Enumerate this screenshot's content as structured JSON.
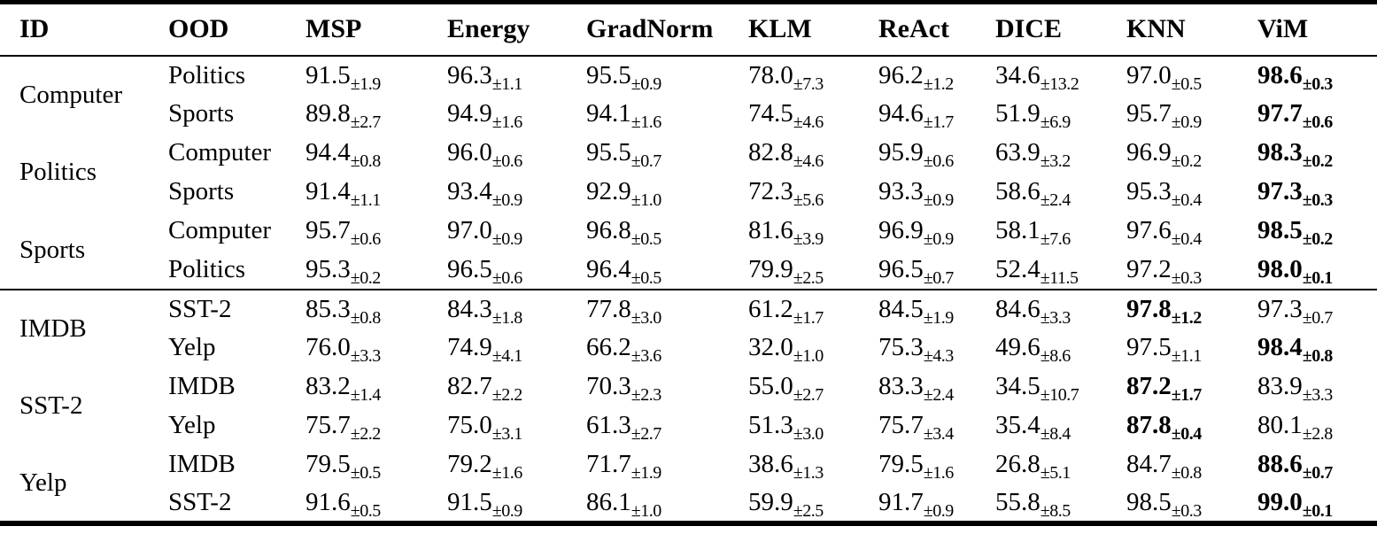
{
  "table": {
    "columns": [
      {
        "key": "id",
        "label": "ID"
      },
      {
        "key": "ood",
        "label": "OOD"
      },
      {
        "key": "msp",
        "label": "MSP"
      },
      {
        "key": "energy",
        "label": "Energy"
      },
      {
        "key": "gradnorm",
        "label": "GradNorm"
      },
      {
        "key": "klm",
        "label": "KLM"
      },
      {
        "key": "react",
        "label": "ReAct"
      },
      {
        "key": "dice",
        "label": "DICE"
      },
      {
        "key": "knn",
        "label": "KNN"
      },
      {
        "key": "vim",
        "label": "ViM"
      }
    ],
    "plus_minus_symbol": "±",
    "sections": [
      {
        "groups": [
          {
            "id": "Computer",
            "rows": [
              {
                "ood": "Politics",
                "cells": [
                  {
                    "mean": "91.5",
                    "std": "1.9",
                    "bold": false
                  },
                  {
                    "mean": "96.3",
                    "std": "1.1",
                    "bold": false
                  },
                  {
                    "mean": "95.5",
                    "std": "0.9",
                    "bold": false
                  },
                  {
                    "mean": "78.0",
                    "std": "7.3",
                    "bold": false
                  },
                  {
                    "mean": "96.2",
                    "std": "1.2",
                    "bold": false
                  },
                  {
                    "mean": "34.6",
                    "std": "13.2",
                    "bold": false
                  },
                  {
                    "mean": "97.0",
                    "std": "0.5",
                    "bold": false
                  },
                  {
                    "mean": "98.6",
                    "std": "0.3",
                    "bold": true
                  }
                ]
              },
              {
                "ood": "Sports",
                "cells": [
                  {
                    "mean": "89.8",
                    "std": "2.7",
                    "bold": false
                  },
                  {
                    "mean": "94.9",
                    "std": "1.6",
                    "bold": false
                  },
                  {
                    "mean": "94.1",
                    "std": "1.6",
                    "bold": false
                  },
                  {
                    "mean": "74.5",
                    "std": "4.6",
                    "bold": false
                  },
                  {
                    "mean": "94.6",
                    "std": "1.7",
                    "bold": false
                  },
                  {
                    "mean": "51.9",
                    "std": "6.9",
                    "bold": false
                  },
                  {
                    "mean": "95.7",
                    "std": "0.9",
                    "bold": false
                  },
                  {
                    "mean": "97.7",
                    "std": "0.6",
                    "bold": true
                  }
                ]
              }
            ]
          },
          {
            "id": "Politics",
            "rows": [
              {
                "ood": "Computer",
                "cells": [
                  {
                    "mean": "94.4",
                    "std": "0.8",
                    "bold": false
                  },
                  {
                    "mean": "96.0",
                    "std": "0.6",
                    "bold": false
                  },
                  {
                    "mean": "95.5",
                    "std": "0.7",
                    "bold": false
                  },
                  {
                    "mean": "82.8",
                    "std": "4.6",
                    "bold": false
                  },
                  {
                    "mean": "95.9",
                    "std": "0.6",
                    "bold": false
                  },
                  {
                    "mean": "63.9",
                    "std": "3.2",
                    "bold": false
                  },
                  {
                    "mean": "96.9",
                    "std": "0.2",
                    "bold": false
                  },
                  {
                    "mean": "98.3",
                    "std": "0.2",
                    "bold": true
                  }
                ]
              },
              {
                "ood": "Sports",
                "cells": [
                  {
                    "mean": "91.4",
                    "std": "1.1",
                    "bold": false
                  },
                  {
                    "mean": "93.4",
                    "std": "0.9",
                    "bold": false
                  },
                  {
                    "mean": "92.9",
                    "std": "1.0",
                    "bold": false
                  },
                  {
                    "mean": "72.3",
                    "std": "5.6",
                    "bold": false
                  },
                  {
                    "mean": "93.3",
                    "std": "0.9",
                    "bold": false
                  },
                  {
                    "mean": "58.6",
                    "std": "2.4",
                    "bold": false
                  },
                  {
                    "mean": "95.3",
                    "std": "0.4",
                    "bold": false
                  },
                  {
                    "mean": "97.3",
                    "std": "0.3",
                    "bold": true
                  }
                ]
              }
            ]
          },
          {
            "id": "Sports",
            "rows": [
              {
                "ood": "Computer",
                "cells": [
                  {
                    "mean": "95.7",
                    "std": "0.6",
                    "bold": false
                  },
                  {
                    "mean": "97.0",
                    "std": "0.9",
                    "bold": false
                  },
                  {
                    "mean": "96.8",
                    "std": "0.5",
                    "bold": false
                  },
                  {
                    "mean": "81.6",
                    "std": "3.9",
                    "bold": false
                  },
                  {
                    "mean": "96.9",
                    "std": "0.9",
                    "bold": false
                  },
                  {
                    "mean": "58.1",
                    "std": "7.6",
                    "bold": false
                  },
                  {
                    "mean": "97.6",
                    "std": "0.4",
                    "bold": false
                  },
                  {
                    "mean": "98.5",
                    "std": "0.2",
                    "bold": true
                  }
                ]
              },
              {
                "ood": "Politics",
                "cells": [
                  {
                    "mean": "95.3",
                    "std": "0.2",
                    "bold": false
                  },
                  {
                    "mean": "96.5",
                    "std": "0.6",
                    "bold": false
                  },
                  {
                    "mean": "96.4",
                    "std": "0.5",
                    "bold": false
                  },
                  {
                    "mean": "79.9",
                    "std": "2.5",
                    "bold": false
                  },
                  {
                    "mean": "96.5",
                    "std": "0.7",
                    "bold": false
                  },
                  {
                    "mean": "52.4",
                    "std": "11.5",
                    "bold": false
                  },
                  {
                    "mean": "97.2",
                    "std": "0.3",
                    "bold": false
                  },
                  {
                    "mean": "98.0",
                    "std": "0.1",
                    "bold": true
                  }
                ]
              }
            ]
          }
        ]
      },
      {
        "groups": [
          {
            "id": "IMDB",
            "rows": [
              {
                "ood": "SST-2",
                "cells": [
                  {
                    "mean": "85.3",
                    "std": "0.8",
                    "bold": false
                  },
                  {
                    "mean": "84.3",
                    "std": "1.8",
                    "bold": false
                  },
                  {
                    "mean": "77.8",
                    "std": "3.0",
                    "bold": false
                  },
                  {
                    "mean": "61.2",
                    "std": "1.7",
                    "bold": false
                  },
                  {
                    "mean": "84.5",
                    "std": "1.9",
                    "bold": false
                  },
                  {
                    "mean": "84.6",
                    "std": "3.3",
                    "bold": false
                  },
                  {
                    "mean": "97.8",
                    "std": "1.2",
                    "bold": true
                  },
                  {
                    "mean": "97.3",
                    "std": "0.7",
                    "bold": false
                  }
                ]
              },
              {
                "ood": "Yelp",
                "cells": [
                  {
                    "mean": "76.0",
                    "std": "3.3",
                    "bold": false
                  },
                  {
                    "mean": "74.9",
                    "std": "4.1",
                    "bold": false
                  },
                  {
                    "mean": "66.2",
                    "std": "3.6",
                    "bold": false
                  },
                  {
                    "mean": "32.0",
                    "std": "1.0",
                    "bold": false
                  },
                  {
                    "mean": "75.3",
                    "std": "4.3",
                    "bold": false
                  },
                  {
                    "mean": "49.6",
                    "std": "8.6",
                    "bold": false
                  },
                  {
                    "mean": "97.5",
                    "std": "1.1",
                    "bold": false
                  },
                  {
                    "mean": "98.4",
                    "std": "0.8",
                    "bold": true
                  }
                ]
              }
            ]
          },
          {
            "id": "SST-2",
            "rows": [
              {
                "ood": "IMDB",
                "cells": [
                  {
                    "mean": "83.2",
                    "std": "1.4",
                    "bold": false
                  },
                  {
                    "mean": "82.7",
                    "std": "2.2",
                    "bold": false
                  },
                  {
                    "mean": "70.3",
                    "std": "2.3",
                    "bold": false
                  },
                  {
                    "mean": "55.0",
                    "std": "2.7",
                    "bold": false
                  },
                  {
                    "mean": "83.3",
                    "std": "2.4",
                    "bold": false
                  },
                  {
                    "mean": "34.5",
                    "std": "10.7",
                    "bold": false
                  },
                  {
                    "mean": "87.2",
                    "std": "1.7",
                    "bold": true
                  },
                  {
                    "mean": "83.9",
                    "std": "3.3",
                    "bold": false
                  }
                ]
              },
              {
                "ood": "Yelp",
                "cells": [
                  {
                    "mean": "75.7",
                    "std": "2.2",
                    "bold": false
                  },
                  {
                    "mean": "75.0",
                    "std": "3.1",
                    "bold": false
                  },
                  {
                    "mean": "61.3",
                    "std": "2.7",
                    "bold": false
                  },
                  {
                    "mean": "51.3",
                    "std": "3.0",
                    "bold": false
                  },
                  {
                    "mean": "75.7",
                    "std": "3.4",
                    "bold": false
                  },
                  {
                    "mean": "35.4",
                    "std": "8.4",
                    "bold": false
                  },
                  {
                    "mean": "87.8",
                    "std": "0.4",
                    "bold": true
                  },
                  {
                    "mean": "80.1",
                    "std": "2.8",
                    "bold": false
                  }
                ]
              }
            ]
          },
          {
            "id": "Yelp",
            "rows": [
              {
                "ood": "IMDB",
                "cells": [
                  {
                    "mean": "79.5",
                    "std": "0.5",
                    "bold": false
                  },
                  {
                    "mean": "79.2",
                    "std": "1.6",
                    "bold": false
                  },
                  {
                    "mean": "71.7",
                    "std": "1.9",
                    "bold": false
                  },
                  {
                    "mean": "38.6",
                    "std": "1.3",
                    "bold": false
                  },
                  {
                    "mean": "79.5",
                    "std": "1.6",
                    "bold": false
                  },
                  {
                    "mean": "26.8",
                    "std": "5.1",
                    "bold": false
                  },
                  {
                    "mean": "84.7",
                    "std": "0.8",
                    "bold": false
                  },
                  {
                    "mean": "88.6",
                    "std": "0.7",
                    "bold": true
                  }
                ]
              },
              {
                "ood": "SST-2",
                "cells": [
                  {
                    "mean": "91.6",
                    "std": "0.5",
                    "bold": false
                  },
                  {
                    "mean": "91.5",
                    "std": "0.9",
                    "bold": false
                  },
                  {
                    "mean": "86.1",
                    "std": "1.0",
                    "bold": false
                  },
                  {
                    "mean": "59.9",
                    "std": "2.5",
                    "bold": false
                  },
                  {
                    "mean": "91.7",
                    "std": "0.9",
                    "bold": false
                  },
                  {
                    "mean": "55.8",
                    "std": "8.5",
                    "bold": false
                  },
                  {
                    "mean": "98.5",
                    "std": "0.3",
                    "bold": false
                  },
                  {
                    "mean": "99.0",
                    "std": "0.1",
                    "bold": true
                  }
                ]
              }
            ]
          }
        ]
      }
    ]
  }
}
